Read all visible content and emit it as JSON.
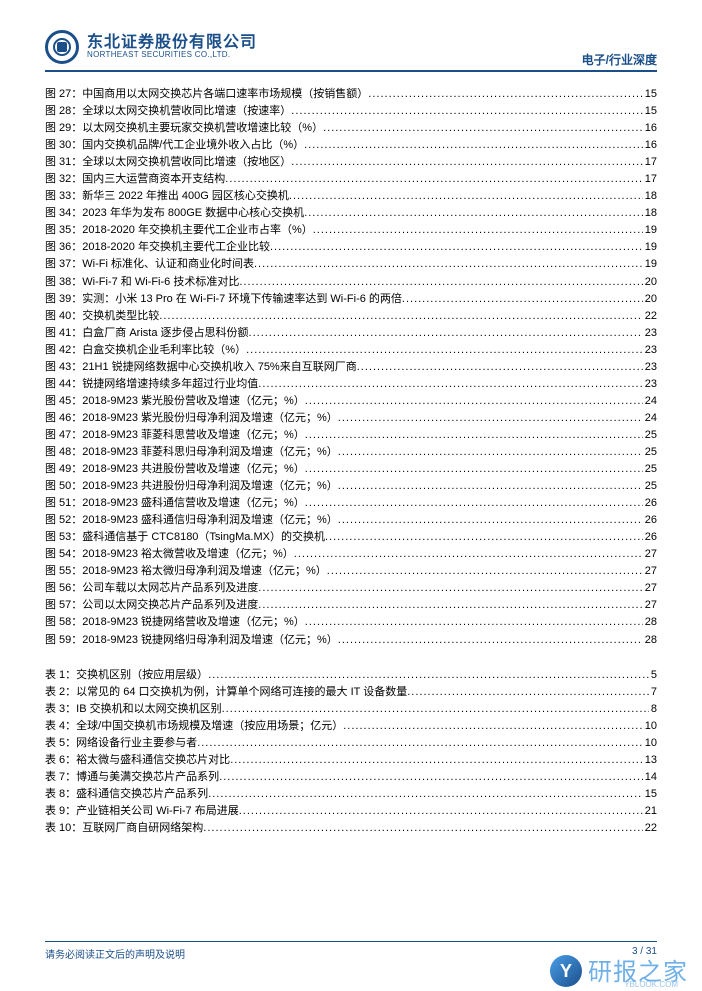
{
  "header": {
    "company_cn": "东北证券股份有限公司",
    "company_en": "NORTHEAST SECURITIES CO.,LTD.",
    "category": "电子/行业深度"
  },
  "figures": [
    {
      "n": "图 27：",
      "t": "中国商用以太网交换芯片各端口速率市场规模（按销售额）",
      "p": "15"
    },
    {
      "n": "图 28：",
      "t": "全球以太网交换机营收同比增速（按速率）",
      "p": "15"
    },
    {
      "n": "图 29：",
      "t": "以太网交换机主要玩家交换机营收增速比较（%）",
      "p": "16"
    },
    {
      "n": "图 30：",
      "t": "国内交换机品牌/代工企业境外收入占比（%）",
      "p": "16"
    },
    {
      "n": "图 31：",
      "t": "全球以太网交换机营收同比增速（按地区）",
      "p": "17"
    },
    {
      "n": "图 32：",
      "t": "国内三大运营商资本开支结构",
      "p": "17"
    },
    {
      "n": "图 33：",
      "t": "新华三 2022 年推出 400G 园区核心交换机",
      "p": "18"
    },
    {
      "n": "图 34：",
      "t": "2023 年华为发布 800GE 数据中心核心交换机",
      "p": "18"
    },
    {
      "n": "图 35：",
      "t": "2018-2020 年交换机主要代工企业市占率（%）",
      "p": "19"
    },
    {
      "n": "图 36：",
      "t": "2018-2020 年交换机主要代工企业比较",
      "p": "19"
    },
    {
      "n": "图 37：",
      "t": "Wi-Fi 标准化、认证和商业化时间表",
      "p": "19"
    },
    {
      "n": "图 38：",
      "t": "Wi-Fi-7 和 Wi-Fi-6 技术标准对比",
      "p": "20"
    },
    {
      "n": "图 39：",
      "t": "实测：小米 13 Pro 在 Wi-Fi-7 环境下传输速率达到 Wi-Fi-6 的两倍",
      "p": "20"
    },
    {
      "n": "图 40：",
      "t": "交换机类型比较",
      "p": "22"
    },
    {
      "n": "图 41：",
      "t": "白盒厂商 Arista 逐步侵占思科份额",
      "p": "23"
    },
    {
      "n": "图 42：",
      "t": "白盒交换机企业毛利率比较（%）",
      "p": "23"
    },
    {
      "n": "图 43：",
      "t": "21H1 锐捷网络数据中心交换机收入 75%来自互联网厂商",
      "p": "23"
    },
    {
      "n": "图 44：",
      "t": "锐捷网络增速持续多年超过行业均值",
      "p": "23"
    },
    {
      "n": "图 45：",
      "t": "2018-9M23 紫光股份营收及增速（亿元；%）",
      "p": "24"
    },
    {
      "n": "图 46：",
      "t": "2018-9M23 紫光股份归母净利润及增速（亿元；%）",
      "p": "24"
    },
    {
      "n": "图 47：",
      "t": "2018-9M23 菲菱科思营收及增速（亿元；%）",
      "p": "25"
    },
    {
      "n": "图 48：",
      "t": "2018-9M23 菲菱科思归母净利润及增速（亿元；%）",
      "p": "25"
    },
    {
      "n": "图 49：",
      "t": "2018-9M23 共进股份营收及增速（亿元；%）",
      "p": "25"
    },
    {
      "n": "图 50：",
      "t": "2018-9M23 共进股份归母净利润及增速（亿元；%）",
      "p": "25"
    },
    {
      "n": "图 51：",
      "t": "2018-9M23 盛科通信营收及增速（亿元；%）",
      "p": "26"
    },
    {
      "n": "图 52：",
      "t": "2018-9M23 盛科通信归母净利润及增速（亿元；%）",
      "p": "26"
    },
    {
      "n": "图 53：",
      "t": "盛科通信基于 CTC8180（TsingMa.MX）的交换机",
      "p": "26"
    },
    {
      "n": "图 54：",
      "t": "2018-9M23 裕太微营收及增速（亿元；%）",
      "p": "27"
    },
    {
      "n": "图 55：",
      "t": "2018-9M23 裕太微归母净利润及增速（亿元；%）",
      "p": "27"
    },
    {
      "n": "图 56：",
      "t": "公司车载以太网芯片产品系列及进度",
      "p": "27"
    },
    {
      "n": "图 57：",
      "t": "公司以太网交换芯片产品系列及进度",
      "p": "27"
    },
    {
      "n": "图 58：",
      "t": "2018-9M23 锐捷网络营收及增速（亿元；%）",
      "p": "28"
    },
    {
      "n": "图 59：",
      "t": "2018-9M23 锐捷网络归母净利润及增速（亿元；%）",
      "p": "28"
    }
  ],
  "tables": [
    {
      "n": "表 1：",
      "t": "交换机区别（按应用层级）",
      "p": "5"
    },
    {
      "n": "表 2：",
      "t": "以常见的 64 口交换机为例，计算单个网络可连接的最大 IT 设备数量",
      "p": "7"
    },
    {
      "n": "表 3：",
      "t": "IB 交换机和以太网交换机区别",
      "p": "8"
    },
    {
      "n": "表 4：",
      "t": "全球/中国交换机市场规模及增速（按应用场景；亿元）",
      "p": "10"
    },
    {
      "n": "表 5：",
      "t": "网络设备行业主要参与者",
      "p": "10"
    },
    {
      "n": "表 6：",
      "t": "裕太微与盛科通信交换芯片对比",
      "p": "13"
    },
    {
      "n": "表 7：",
      "t": "博通与美满交换芯片产品系列",
      "p": "14"
    },
    {
      "n": "表 8：",
      "t": "盛科通信交换芯片产品系列",
      "p": "15"
    },
    {
      "n": "表 9：",
      "t": "产业链相关公司 Wi-Fi-7 布局进展",
      "p": "21"
    },
    {
      "n": "表 10：",
      "t": "互联网厂商自研网络架构",
      "p": "22"
    }
  ],
  "footer": {
    "disclaimer": "请务必阅读正文后的声明及说明",
    "pager": "3 / 31"
  },
  "watermark": {
    "text": "研报之家",
    "url": "YBLOOK.COM"
  }
}
